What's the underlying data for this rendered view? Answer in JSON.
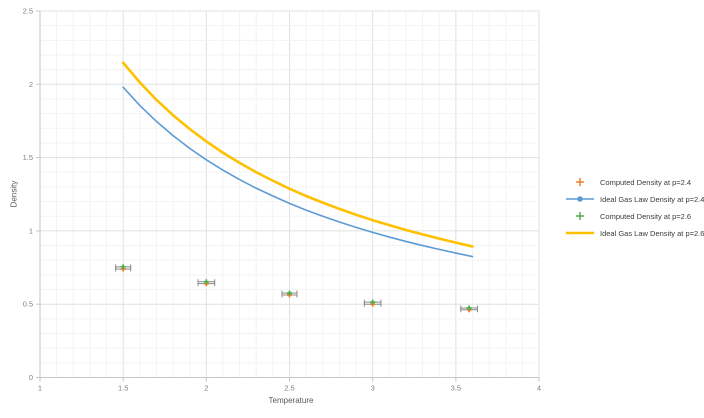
{
  "chart_data": {
    "type": "line",
    "title": "",
    "xlabel": "Temperature",
    "ylabel": "Density",
    "xlim": [
      1,
      4
    ],
    "ylim": [
      0,
      2.5
    ],
    "x_ticks": [
      1,
      1.5,
      2,
      2.5,
      3,
      3.5,
      4
    ],
    "x_tick_labels": [
      "1",
      "1.5",
      "2",
      "2.5",
      "3",
      "3.5",
      "4"
    ],
    "y_ticks": [
      0,
      0.5,
      1,
      1.5,
      2,
      2.5
    ],
    "y_tick_labels": [
      "0",
      "0.5",
      "1",
      "1.5",
      "2",
      "2.5"
    ],
    "grid": "major+minor",
    "minor_step": 0.1,
    "legend_position": "right-middle",
    "colors": {
      "background": "#ffffff",
      "minor_grid": "#f3f3f3",
      "major_grid": "#e1e1e1",
      "axis": "#c6c6c6",
      "tick_text": "#7f7f7f",
      "axis_label_text": "#595959",
      "legend_text": "#3b3b3b",
      "error_bar": "#8c8c8c"
    },
    "series": [
      {
        "name": "Computed Density at p=2.4",
        "slug": "computed-p24",
        "kind": "scatter",
        "marker": "plus",
        "color": "#ED7D31",
        "x": [
          1.5,
          2.0,
          2.5,
          3.0,
          3.58
        ],
        "y": [
          0.74,
          0.64,
          0.563,
          0.5,
          0.462
        ],
        "x_err": [
          0.045,
          0.05,
          0.045,
          0.05,
          0.05
        ]
      },
      {
        "name": "Ideal Gas Law Density at p=2.4",
        "slug": "ideal-p24",
        "kind": "line",
        "color": "#5B9BD5",
        "width": 1.6,
        "legend_marker": "circle",
        "x": [
          1.5,
          1.6,
          1.7,
          1.8,
          1.9,
          2.0,
          2.1,
          2.2,
          2.3,
          2.4,
          2.5,
          2.6,
          2.7,
          2.8,
          2.9,
          3.0,
          3.1,
          3.2,
          3.3,
          3.4,
          3.5,
          3.6
        ],
        "y": [
          1.98,
          1.856,
          1.747,
          1.65,
          1.563,
          1.485,
          1.414,
          1.35,
          1.291,
          1.238,
          1.188,
          1.142,
          1.1,
          1.061,
          1.024,
          0.99,
          0.958,
          0.928,
          0.9,
          0.874,
          0.849,
          0.825
        ]
      },
      {
        "name": "Computed Density at p=2.6",
        "slug": "computed-p26",
        "kind": "scatter",
        "marker": "plus",
        "color": "#4CAF50",
        "x": [
          1.5,
          2.0,
          2.5,
          3.0,
          3.58
        ],
        "y": [
          0.755,
          0.653,
          0.576,
          0.514,
          0.474
        ],
        "x_err": [
          0.045,
          0.05,
          0.045,
          0.05,
          0.05
        ]
      },
      {
        "name": "Ideal Gas Law Density at p=2.6",
        "slug": "ideal-p26",
        "kind": "line",
        "color": "#FFC000",
        "width": 2.6,
        "x": [
          1.5,
          1.6,
          1.7,
          1.8,
          1.9,
          2.0,
          2.1,
          2.2,
          2.3,
          2.4,
          2.5,
          2.6,
          2.7,
          2.8,
          2.9,
          3.0,
          3.1,
          3.2,
          3.3,
          3.4,
          3.5,
          3.6
        ],
        "y": [
          2.147,
          2.013,
          1.894,
          1.789,
          1.695,
          1.61,
          1.533,
          1.464,
          1.4,
          1.342,
          1.288,
          1.238,
          1.193,
          1.15,
          1.11,
          1.073,
          1.039,
          1.006,
          0.976,
          0.947,
          0.92,
          0.894
        ]
      }
    ]
  }
}
